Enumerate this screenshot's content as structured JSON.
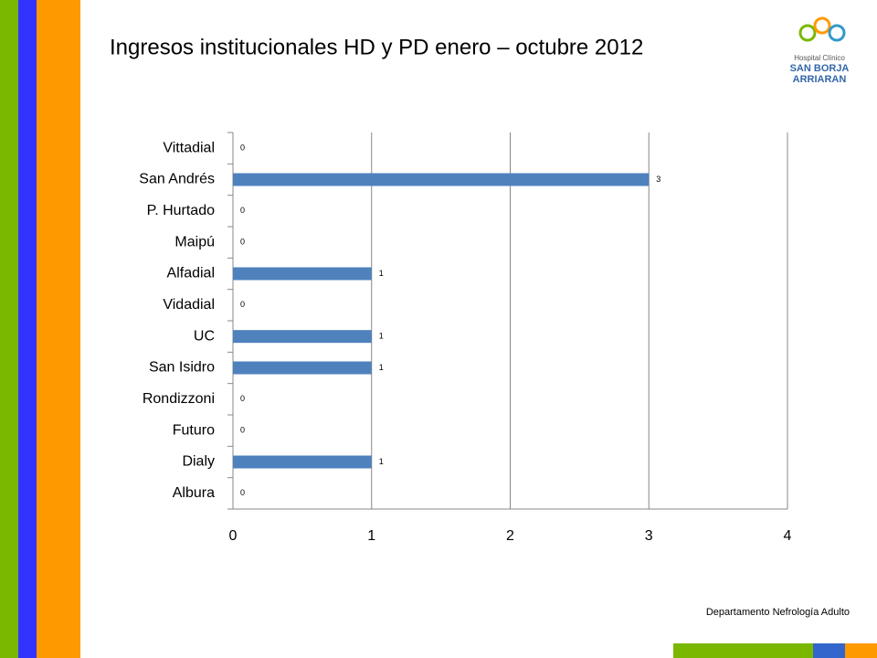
{
  "chart_data": {
    "type": "bar",
    "orientation": "horizontal",
    "title": "Ingresos institucionales HD  y PD enero – octubre 2012",
    "categories": [
      "Vittadial",
      "San Andrés",
      "P. Hurtado",
      "Maipú",
      "Alfadial",
      "Vidadial",
      "UC",
      "San Isidro",
      "Rondizzoni",
      "Futuro",
      "Dialy",
      "Albura"
    ],
    "values": [
      0,
      3,
      0,
      0,
      1,
      0,
      1,
      1,
      0,
      0,
      1,
      0
    ],
    "color": "#4f81bd",
    "xlim": [
      0,
      4
    ],
    "xticks": [
      0,
      1,
      2,
      3,
      4
    ],
    "grid": true
  },
  "logo": [
    "Hospital Clínico",
    "SAN BORJA",
    "ARRIARAN"
  ],
  "footer": "Departamento Nefrología Adulto"
}
